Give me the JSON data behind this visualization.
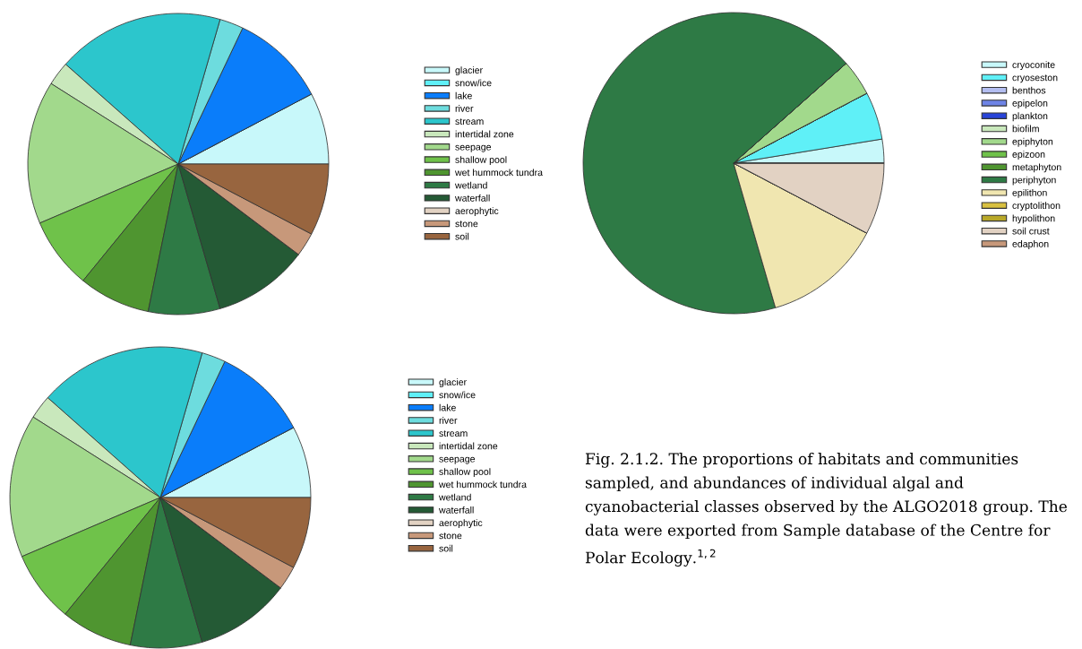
{
  "chart_data": [
    {
      "type": "pie",
      "legend": "right",
      "categories": [
        "glacier",
        "snow/ice",
        "lake",
        "river",
        "stream",
        "intertidal zone",
        "seepage",
        "shallow pool",
        "wet hummock tundra",
        "wetland",
        "waterfall",
        "aerophytic",
        "stone",
        "soil"
      ],
      "values": [
        7.69,
        0,
        10.26,
        2.56,
        17.95,
        2.56,
        15.38,
        7.69,
        7.69,
        7.69,
        10.26,
        0,
        2.56,
        7.69
      ],
      "colors": [
        "#c8f8fa",
        "#5ff0f7",
        "#0a7dfa",
        "#6ddcde",
        "#2cc6cc",
        "#c9e8bc",
        "#a2d98c",
        "#6fc24a",
        "#4f9530",
        "#2e7a45",
        "#245a35",
        "#e2d2c3",
        "#c7987a",
        "#98653f"
      ]
    },
    {
      "type": "pie",
      "legend": "right",
      "categories": [
        "cryoconite",
        "cryoseston",
        "benthos",
        "epipelon",
        "plankton",
        "biofilm",
        "epiphyton",
        "epizoon",
        "metaphyton",
        "periphyton",
        "epilithon",
        "cryptolithon",
        "hypolithon",
        "soil crust",
        "edaphon"
      ],
      "values": [
        2.56,
        5.13,
        0,
        0,
        0,
        0,
        3.85,
        0,
        0,
        67.95,
        12.82,
        0,
        0,
        7.69,
        0
      ],
      "colors": [
        "#c8f8fa",
        "#5ff0f7",
        "#b3bdf0",
        "#6e84e6",
        "#2844d8",
        "#c9e8bc",
        "#a2d98c",
        "#6fc24a",
        "#4f9530",
        "#2e7a45",
        "#f0e6b0",
        "#d8c040",
        "#b8a828",
        "#e2d2c3",
        "#c7987a"
      ]
    },
    {
      "type": "pie",
      "legend": "right",
      "categories": [
        "glacier",
        "snow/ice",
        "lake",
        "river",
        "stream",
        "intertidal zone",
        "seepage",
        "shallow pool",
        "wet hummock tundra",
        "wetland",
        "waterfall",
        "aerophytic",
        "stone",
        "soil"
      ],
      "values": [
        7.69,
        0,
        10.26,
        2.56,
        17.95,
        2.56,
        15.38,
        7.69,
        7.69,
        7.69,
        10.26,
        0,
        2.56,
        7.69
      ],
      "colors": [
        "#c8f8fa",
        "#5ff0f7",
        "#0a7dfa",
        "#6ddcde",
        "#2cc6cc",
        "#c9e8bc",
        "#a2d98c",
        "#6fc24a",
        "#4f9530",
        "#2e7a45",
        "#245a35",
        "#e2d2c3",
        "#c7987a",
        "#98653f"
      ],
      "annotations": [
        "Fig. 2.1.2. The proportions of habitats and communities sampled, and abundances of individual algal and cyanobacterial classes observed by the ALGO2018 group. The data were exported from Sample database of the Centre for Polar Ecology.$^{1,2}$"
      ]
    }
  ]
}
